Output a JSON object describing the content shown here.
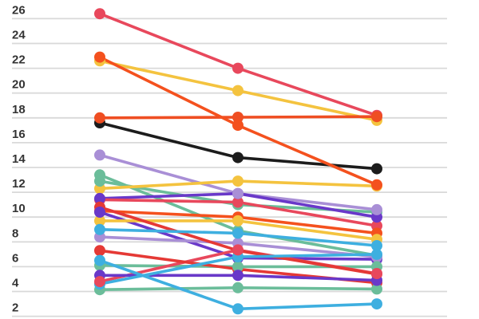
{
  "chart_data": {
    "type": "line",
    "subtype": "slope-chart",
    "title": "",
    "xlabel": "",
    "ylabel": "",
    "x_labels": [
      "",
      "",
      ""
    ],
    "num_x_columns": 3,
    "y_ticks": [
      26,
      24,
      22,
      20,
      18,
      16,
      14,
      12,
      10,
      8,
      6,
      4,
      2
    ],
    "ylim": [
      1.8,
      27.4
    ],
    "grid": "horizontal-only",
    "legend": "none",
    "marker": "filled-circle",
    "series": [
      {
        "color": "#F4C33F",
        "values": [
          22.6,
          20.2,
          17.8
        ]
      },
      {
        "color": "#E8485C",
        "values": [
          26.4,
          22.0,
          18.2
        ]
      },
      {
        "color": "#1C1C1C",
        "values": [
          17.6,
          14.8,
          13.9
        ]
      },
      {
        "color": "#EF4E22",
        "values": [
          18.0,
          18.05,
          18.1
        ]
      },
      {
        "color": "#F4511E",
        "values": [
          22.9,
          17.4,
          12.6
        ]
      },
      {
        "color": "#A98FD6",
        "values": [
          15.0,
          11.9,
          10.6
        ]
      },
      {
        "color": "#6BBD9A",
        "values": [
          13.4,
          8.9,
          6.9
        ]
      },
      {
        "color": "#6BBD9A",
        "values": [
          12.9,
          11.0,
          10.4
        ]
      },
      {
        "color": "#F4C33F",
        "values": [
          12.3,
          12.9,
          12.5
        ]
      },
      {
        "color": "#6938C9",
        "values": [
          11.5,
          11.9,
          10.0
        ]
      },
      {
        "color": "#6938C9",
        "values": [
          10.4,
          6.7,
          6.6
        ]
      },
      {
        "color": "#F4C33F",
        "values": [
          9.7,
          9.7,
          8.2
        ]
      },
      {
        "color": "#A98FD6",
        "values": [
          8.4,
          7.9,
          6.8
        ]
      },
      {
        "color": "#6BBD9A",
        "values": [
          6.1,
          6.0,
          6.0
        ]
      },
      {
        "color": "#6BBD9A",
        "values": [
          4.15,
          4.3,
          4.2
        ]
      },
      {
        "color": "#F4511E",
        "values": [
          10.5,
          10.0,
          8.7
        ]
      },
      {
        "color": "#E8485C",
        "values": [
          11.4,
          11.2,
          9.3
        ]
      },
      {
        "color": "#E8485C",
        "values": [
          4.8,
          7.35,
          5.45
        ]
      },
      {
        "color": "#E53935",
        "values": [
          7.3,
          5.8,
          4.7
        ]
      },
      {
        "color": "#E53935",
        "values": [
          10.8,
          7.3,
          5.4
        ]
      },
      {
        "color": "#3EAFE0",
        "values": [
          9.0,
          8.7,
          7.7
        ]
      },
      {
        "color": "#6938C9",
        "values": [
          5.3,
          5.3,
          4.9
        ]
      },
      {
        "color": "#3EAFE0",
        "values": [
          4.6,
          6.8,
          7.0
        ]
      },
      {
        "color": "#3EAFE0",
        "values": [
          6.5,
          2.6,
          3.0
        ]
      }
    ]
  },
  "colors": {
    "background": "#FFFFFF",
    "gridline": "#D9D9D9",
    "tick_label": "#333333",
    "palette": {
      "crimson": "#E8485C",
      "deep_orange": "#F4511E",
      "orange_red": "#EF4E22",
      "yellow": "#F4C33F",
      "black": "#1C1C1C",
      "green": "#6BBD9A",
      "blue": "#3EAFE0",
      "lavender": "#A98FD6",
      "violet": "#6938C9",
      "red": "#E53935"
    }
  }
}
